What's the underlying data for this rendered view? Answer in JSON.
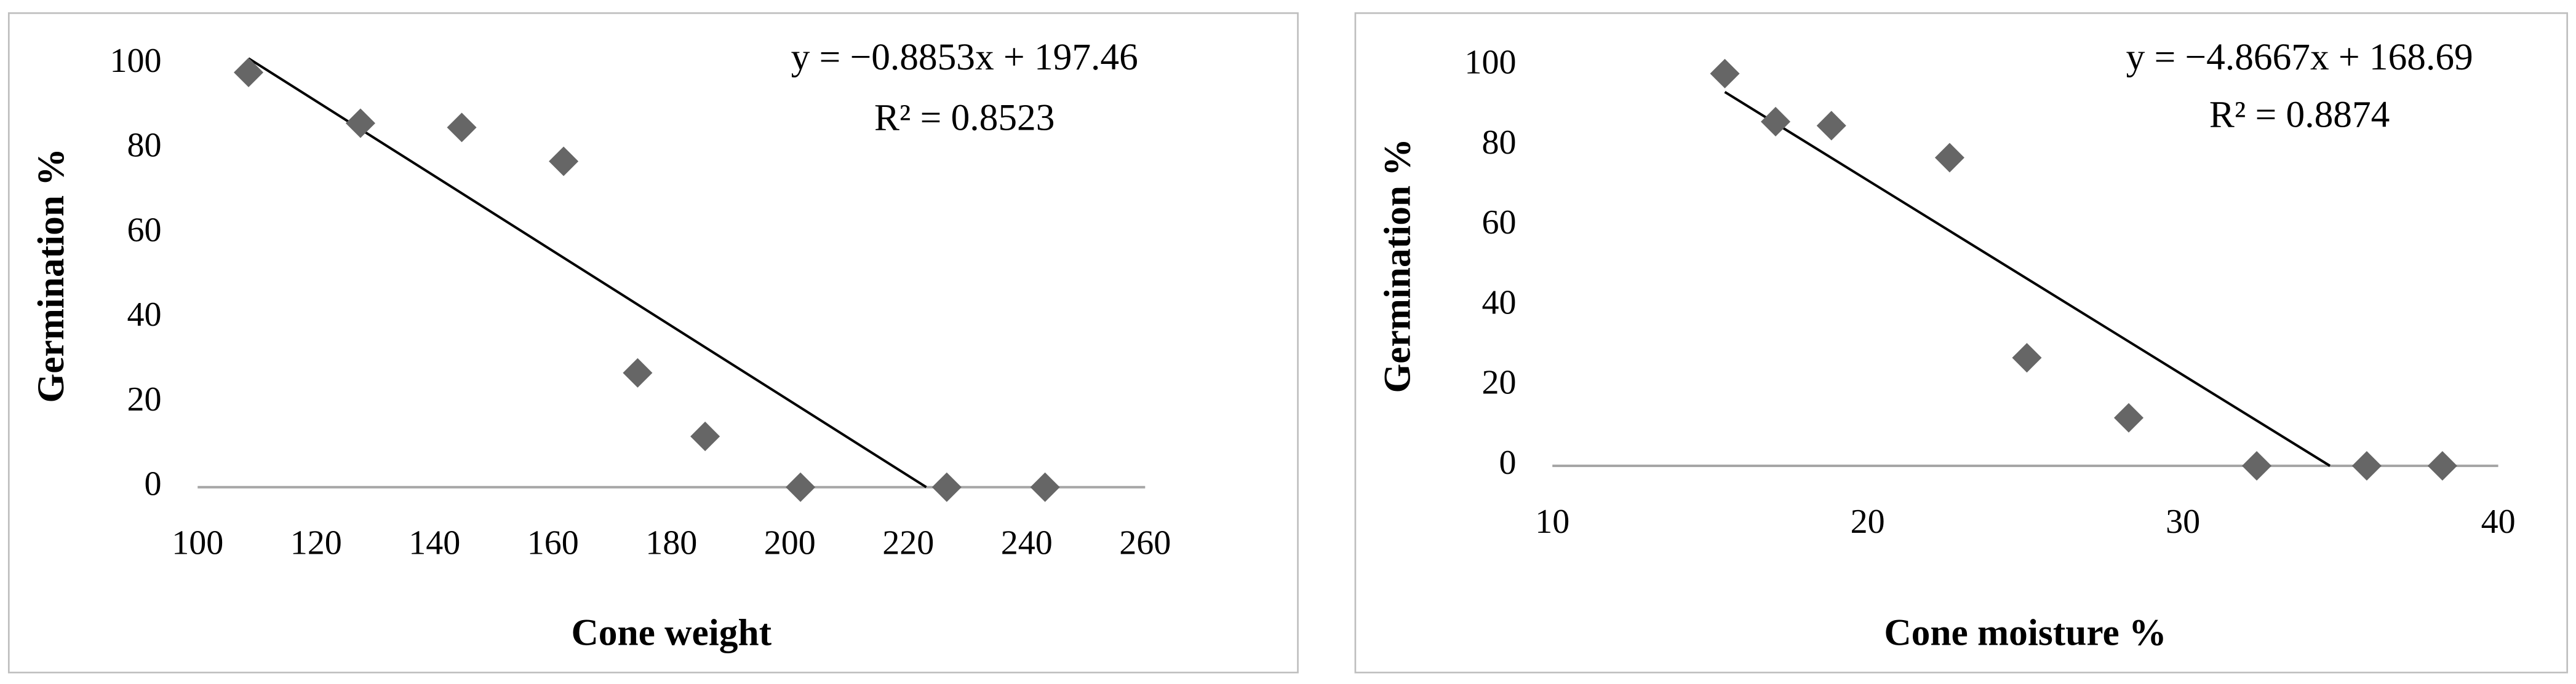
{
  "chart_data": [
    {
      "type": "scatter",
      "x_label": "Cone weight",
      "y_label": "Germination %",
      "x": [
        108.6,
        127.5,
        144.6,
        161.8,
        174.3,
        185.7,
        201.8,
        226.5,
        243.1
      ],
      "values": [
        98,
        86,
        85,
        77,
        27,
        12,
        0,
        0,
        0
      ],
      "color": "#666666",
      "xlim": [
        100,
        260
      ],
      "xticks": [
        100,
        120,
        140,
        160,
        180,
        200,
        220,
        240,
        260
      ],
      "ylim": [
        0,
        100
      ],
      "yticks": [
        0,
        20,
        40,
        60,
        80,
        100
      ],
      "trendline": {
        "slope": -0.8853,
        "intercept": 197.46,
        "equation": "y = −0.8853x + 197.46",
        "r2": "R² = 0.8523"
      }
    },
    {
      "type": "scatter",
      "x_label": "Cone moisture %",
      "y_label": "Germination %",
      "x": [
        15.47,
        17.08,
        18.85,
        22.6,
        25.05,
        28.28,
        32.34,
        35.83,
        38.23
      ],
      "values": [
        98,
        86,
        85,
        77,
        27,
        12,
        0,
        0,
        0
      ],
      "color": "#666666",
      "xlim": [
        10,
        40
      ],
      "xticks": [
        10,
        20,
        30,
        40
      ],
      "ylim": [
        0,
        100
      ],
      "yticks": [
        0,
        20,
        40,
        60,
        80,
        100
      ],
      "trendline": {
        "slope": -4.8667,
        "intercept": 168.69,
        "equation": "y = −4.8667x + 168.69",
        "r2": "R² = 0.8874"
      }
    }
  ]
}
